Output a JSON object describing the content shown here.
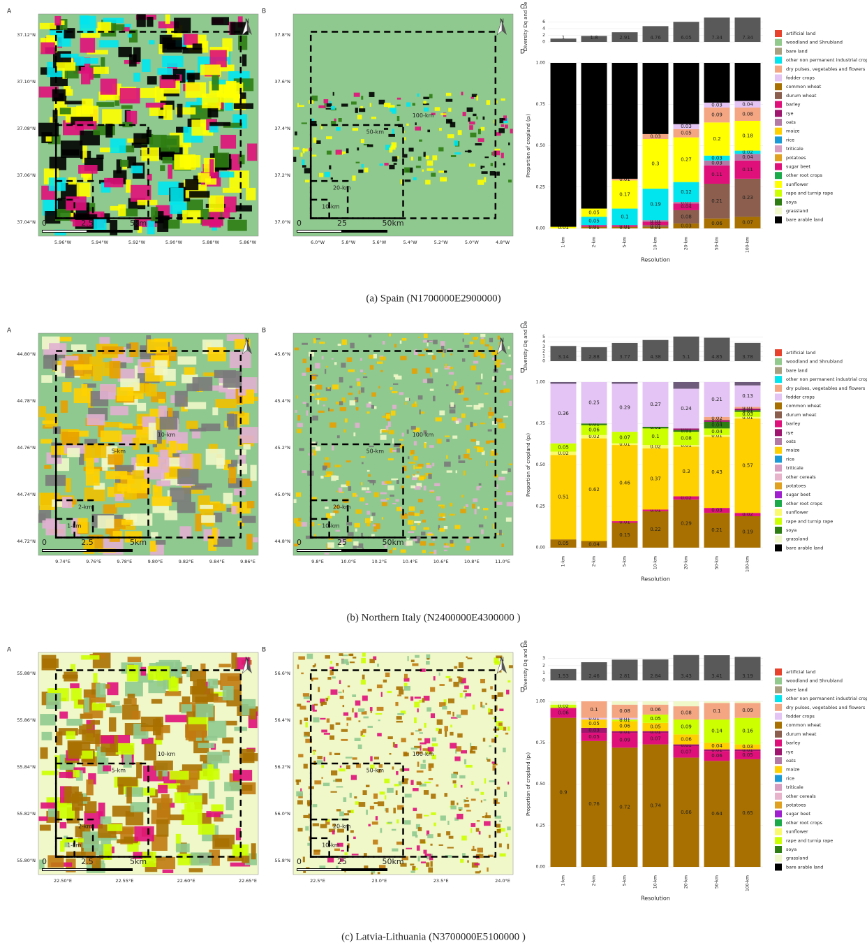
{
  "figures": [
    {
      "caption": "(a) Spain (N1700000E2900000)",
      "maps": [
        {
          "panel": "A",
          "yticks": [
            "37.12°N",
            "37.10°N",
            "37.08°N",
            "37.06°N",
            "37.04°N"
          ],
          "xticks": [
            "5.96°W",
            "5.94°W",
            "5.92°W",
            "5.90°W",
            "5.88°W",
            "5.86°W"
          ],
          "scale_labels": [
            "0",
            "2.5",
            "5km"
          ],
          "north": "N"
        },
        {
          "panel": "B",
          "yticks": [
            "37.8°N",
            "37.6°N",
            "37.4°N",
            "37.2°N",
            "37.0°N"
          ],
          "xticks": [
            "6.0°W",
            "5.8°W",
            "5.6°W",
            "5.4°W",
            "5.2°W",
            "5.0°W",
            "4.8°W"
          ],
          "box_labels": [
            "100-km",
            "50-km",
            "20-km",
            "10-km"
          ],
          "scale_labels": [
            "0",
            "25",
            "50km"
          ],
          "north": "N"
        }
      ],
      "legend": [
        {
          "name": "artificial land",
          "color": "#e8412c"
        },
        {
          "name": "woodland and Shrubland",
          "color": "#92c98c"
        },
        {
          "name": "bare land",
          "color": "#a89f80"
        },
        {
          "name": "other non permanent industrial crops",
          "color": "#00e5ee"
        },
        {
          "name": "dry pulses,  vegetables and flowers",
          "color": "#f4a582"
        },
        {
          "name": "fodder crops",
          "color": "#e4c4f4"
        },
        {
          "name": "common wheat",
          "color": "#a87000"
        },
        {
          "name": "durum wheat",
          "color": "#8b5e4e"
        },
        {
          "name": "barley",
          "color": "#e0107a"
        },
        {
          "name": "rye",
          "color": "#a0156e"
        },
        {
          "name": "oats",
          "color": "#b47aa6"
        },
        {
          "name": "maize",
          "color": "#ffd000"
        },
        {
          "name": "rice",
          "color": "#1a9ad6"
        },
        {
          "name": "triticale",
          "color": "#d89cc0"
        },
        {
          "name": "potatoes",
          "color": "#e0a020"
        },
        {
          "name": "sugar beet",
          "color": "#e0107a"
        },
        {
          "name": "other root crops",
          "color": "#1aaa4a"
        },
        {
          "name": "sunflower",
          "color": "#ffff00"
        },
        {
          "name": "rape and turnip rape",
          "color": "#ccff00"
        },
        {
          "name": "soya",
          "color": "#2e7d12"
        },
        {
          "name": "grassland",
          "color": "#f0f7c8"
        },
        {
          "name": "bare arable land",
          "color": "#000000"
        }
      ]
    },
    {
      "caption": "(b) Northern Italy (N2400000E4300000 )",
      "maps": [
        {
          "panel": "A",
          "yticks": [
            "44.80°N",
            "44.78°N",
            "44.76°N",
            "44.74°N",
            "44.72°N"
          ],
          "xticks": [
            "9.74°E",
            "9.76°E",
            "9.78°E",
            "9.80°E",
            "9.82°E",
            "9.84°E",
            "9.86°E"
          ],
          "box_labels": [
            "10-km",
            "5-km",
            "2-km",
            "1-km"
          ],
          "scale_labels": [
            "0",
            "2.5",
            "5km"
          ],
          "north": "N"
        },
        {
          "panel": "B",
          "yticks": [
            "45.6°N",
            "45.4°N",
            "45.2°N",
            "45.0°N",
            "44.8°N"
          ],
          "xticks": [
            "9.8°E",
            "10.0°E",
            "10.2°E",
            "10.4°E",
            "10.6°E",
            "10.8°E",
            "11.0°E"
          ],
          "box_labels": [
            "100-km",
            "50-km",
            "20-km",
            "10-km"
          ],
          "scale_labels": [
            "0",
            "25",
            "50km"
          ],
          "north": "N"
        }
      ],
      "legend": [
        {
          "name": "artificial land",
          "color": "#e8412c"
        },
        {
          "name": "woodland and Shrubland",
          "color": "#92c98c"
        },
        {
          "name": "bare land",
          "color": "#a89f80"
        },
        {
          "name": "other non permanent industrial crops",
          "color": "#00e5ee"
        },
        {
          "name": "dry pulses,  vegetables and flowers",
          "color": "#f4a582"
        },
        {
          "name": "fodder crops",
          "color": "#e4c4f4"
        },
        {
          "name": "common wheat",
          "color": "#a87000"
        },
        {
          "name": "durum wheat",
          "color": "#8b5e4e"
        },
        {
          "name": "barley",
          "color": "#e0107a"
        },
        {
          "name": "rye",
          "color": "#a0156e"
        },
        {
          "name": "oats",
          "color": "#b47aa6"
        },
        {
          "name": "maize",
          "color": "#ffd000"
        },
        {
          "name": "rice",
          "color": "#1a9ad6"
        },
        {
          "name": "triticale",
          "color": "#d89cc0"
        },
        {
          "name": "other cereals",
          "color": "#e8b4cc"
        },
        {
          "name": "potatoes",
          "color": "#e0a020"
        },
        {
          "name": "sugar beet",
          "color": "#a020d0"
        },
        {
          "name": "other root crops",
          "color": "#1aaa4a"
        },
        {
          "name": "sunflower",
          "color": "#fafa6e"
        },
        {
          "name": "rape and turnip rape",
          "color": "#ccff00"
        },
        {
          "name": "soya",
          "color": "#2e7d12"
        },
        {
          "name": "grassland",
          "color": "#f0f7c8"
        },
        {
          "name": "bare arable land",
          "color": "#000000"
        }
      ]
    },
    {
      "caption": "(c) Latvia-Lithuania (N3700000E5100000 )",
      "maps": [
        {
          "panel": "A",
          "yticks": [
            "55.88°N",
            "55.86°N",
            "55.84°N",
            "55.82°N",
            "55.80°N"
          ],
          "xticks": [
            "22.50°E",
            "22.55°E",
            "22.60°E",
            "22.65°E"
          ],
          "box_labels": [
            "10-km",
            "5-km",
            "2-km",
            "1-km"
          ],
          "scale_labels": [
            "0",
            "2.5",
            "5km"
          ],
          "north": "N"
        },
        {
          "panel": "B",
          "yticks": [
            "56.6°N",
            "56.4°N",
            "56.2°N",
            "56.0°N",
            "55.8°N"
          ],
          "xticks": [
            "22.5°E",
            "23.0°E",
            "23.5°E",
            "24.0°E"
          ],
          "box_labels": [
            "100-km",
            "50-km",
            "20-km",
            "10-km"
          ],
          "scale_labels": [
            "0",
            "25",
            "50km"
          ],
          "north": "N"
        }
      ],
      "legend": [
        {
          "name": "artificial land",
          "color": "#e8412c"
        },
        {
          "name": "woodland and Shrubland",
          "color": "#92c98c"
        },
        {
          "name": "bare land",
          "color": "#a89f80"
        },
        {
          "name": "other non permanent industrial crops",
          "color": "#00e5ee"
        },
        {
          "name": "dry pulses,  vegetables and flowers",
          "color": "#f4a582"
        },
        {
          "name": "fodder crops",
          "color": "#e4c4f4"
        },
        {
          "name": "common wheat",
          "color": "#a87000"
        },
        {
          "name": "durum wheat",
          "color": "#8b5e4e"
        },
        {
          "name": "barley",
          "color": "#e0107a"
        },
        {
          "name": "rye",
          "color": "#a0156e"
        },
        {
          "name": "oats",
          "color": "#b47aa6"
        },
        {
          "name": "maize",
          "color": "#ffd000"
        },
        {
          "name": "rice",
          "color": "#1a9ad6"
        },
        {
          "name": "triticale",
          "color": "#d89cc0"
        },
        {
          "name": "other cereals",
          "color": "#e8b4cc"
        },
        {
          "name": "potatoes",
          "color": "#e0a020"
        },
        {
          "name": "sugar beet",
          "color": "#a020d0"
        },
        {
          "name": "other root crops",
          "color": "#1aaa4a"
        },
        {
          "name": "sunflower",
          "color": "#fafa6e"
        },
        {
          "name": "rape and turnip rape",
          "color": "#ccff00"
        },
        {
          "name": "soya",
          "color": "#2e7d12"
        },
        {
          "name": "grassland",
          "color": "#f0f7c8"
        },
        {
          "name": "bare arable land",
          "color": "#000000"
        }
      ]
    }
  ],
  "chart_data": [
    {
      "type": "bar",
      "panel": "C",
      "ylabel": "Diversity Dq and De",
      "values": [
        1,
        1.8,
        2.91,
        4.76,
        6.05,
        7.34,
        7.34
      ],
      "color": "#595959",
      "ylim": [
        0,
        8
      ],
      "yticks": [
        0,
        2,
        4,
        6
      ]
    },
    {
      "type": "stacked_bar",
      "panel": "D",
      "ylabel": "Proportion of cropland (pᵢ)",
      "xlabel": "Resolution",
      "categories": [
        "1-km",
        "2-km",
        "5-km",
        "10-km",
        "20-km",
        "50-km",
        "100-km"
      ],
      "ylim": [
        0,
        1
      ],
      "yticks": [
        {
          "value": 0,
          "label": "0.00"
        },
        {
          "value": 0.25,
          "label": "0.25"
        },
        {
          "value": 0.5,
          "label": "0.50"
        },
        {
          "value": 0.75,
          "label": "0.75"
        },
        {
          "value": 1,
          "label": "1.00"
        }
      ],
      "series": [
        {
          "name": "common wheat",
          "color": "#a87000",
          "values": [
            0,
            0.01,
            0.01,
            0.01,
            0.03,
            0.06,
            0.07
          ]
        },
        {
          "name": "durum wheat",
          "color": "#8b5e4e",
          "values": [
            0,
            0,
            0,
            0.01,
            0.08,
            0.21,
            0.23
          ]
        },
        {
          "name": "barley",
          "color": "#e0107a",
          "values": [
            0,
            0.01,
            0.01,
            0.02,
            0.04,
            0.11,
            0.11
          ]
        },
        {
          "name": "oats",
          "color": "#b47aa6",
          "values": [
            0,
            0,
            0,
            0.01,
            0.01,
            0.03,
            0.04
          ]
        },
        {
          "name": "other non permanent industrial crops",
          "color": "#00e5ee",
          "values": [
            0,
            0.05,
            0.1,
            0.19,
            0.12,
            0.03,
            0.02
          ]
        },
        {
          "name": "sunflower",
          "color": "#ffff00",
          "values": [
            0.01,
            0.05,
            0.17,
            0.3,
            0.27,
            0.2,
            0.18
          ]
        },
        {
          "name": "dry pulses,  vegetables and flowers",
          "color": "#f4a582",
          "values": [
            0,
            0,
            0.01,
            0.03,
            0.05,
            0.09,
            0.08
          ]
        },
        {
          "name": "fodder crops",
          "color": "#e4c4f4",
          "values": [
            0,
            0,
            0,
            0,
            0.03,
            0.03,
            0.04
          ]
        },
        {
          "name": "bare arable land",
          "color": "#000000",
          "show_labels": false,
          "values": [
            0.99,
            0.88,
            0.7,
            0.43,
            0.37,
            0.24,
            0.23
          ]
        }
      ]
    },
    {
      "type": "bar",
      "panel": "C",
      "ylabel": "Diversity Dq and De",
      "values": [
        3.14,
        2.88,
        3.77,
        4.38,
        5.1,
        4.85,
        3.78
      ],
      "color": "#595959",
      "ylim": [
        0,
        5.5
      ],
      "yticks": [
        0,
        1,
        2,
        3,
        4,
        5
      ]
    },
    {
      "type": "stacked_bar",
      "panel": "D",
      "ylabel": "Proportion of cropland (pᵢ)",
      "xlabel": "Resolution",
      "categories": [
        "1-km",
        "2-km",
        "5-km",
        "10-km",
        "20-km",
        "50-km",
        "100-km"
      ],
      "ylim": [
        0,
        1
      ],
      "yticks": [
        {
          "value": 0,
          "label": "0.00"
        },
        {
          "value": 0.25,
          "label": "0.25"
        },
        {
          "value": 0.5,
          "label": "0.50"
        },
        {
          "value": 0.75,
          "label": "0.75"
        },
        {
          "value": 1,
          "label": "1.00"
        }
      ],
      "series": [
        {
          "name": "common wheat",
          "color": "#a87000",
          "values": [
            0.05,
            0.04,
            0.15,
            0.22,
            0.29,
            0.21,
            0.19
          ]
        },
        {
          "name": "barley",
          "color": "#e0107a",
          "values": [
            0,
            0,
            0.01,
            0.01,
            0.02,
            0.03,
            0.02
          ]
        },
        {
          "name": "maize",
          "color": "#ffd000",
          "values": [
            0.51,
            0.62,
            0.46,
            0.37,
            0.3,
            0.43,
            0.57
          ]
        },
        {
          "name": "sunflower",
          "color": "#fafa6e",
          "values": [
            0.02,
            0.02,
            0.01,
            0.02,
            0.01,
            0.01,
            0.01
          ]
        },
        {
          "name": "rape and turnip rape",
          "color": "#ccff00",
          "values": [
            0.05,
            0.06,
            0.07,
            0.1,
            0.08,
            0.04,
            0.03
          ]
        },
        {
          "name": "soya",
          "color": "#2e7d12",
          "values": [
            0,
            0.01,
            0,
            0.01,
            0.01,
            0.04,
            0.01
          ]
        },
        {
          "name": "rye",
          "color": "#a0156e",
          "values": [
            0,
            0,
            0,
            0,
            0.01,
            0.01,
            0.01
          ]
        },
        {
          "name": "dry pulses,  vegetables and flowers",
          "color": "#f4a582",
          "values": [
            0,
            0,
            0,
            0,
            0,
            0.02,
            0.01
          ]
        },
        {
          "name": "fodder crops",
          "color": "#e4c4f4",
          "values": [
            0.36,
            0.25,
            0.29,
            0.27,
            0.24,
            0.21,
            0.13
          ]
        },
        {
          "name": "grassland",
          "color": "#6e5a7a",
          "show_labels": false,
          "values": [
            0.01,
            0,
            0.01,
            0,
            0.04,
            0,
            0.02
          ]
        }
      ]
    },
    {
      "type": "bar",
      "panel": "C",
      "ylabel": "Diversity Dq and De",
      "values": [
        1.53,
        2.46,
        2.81,
        2.84,
        3.43,
        3.41,
        3.19
      ],
      "color": "#595959",
      "ylim": [
        0,
        3.6
      ],
      "yticks": [
        0,
        1,
        2,
        3
      ]
    },
    {
      "type": "stacked_bar",
      "panel": "D",
      "ylabel": "Proportion of cropland (pᵢ)",
      "xlabel": "Resolution",
      "categories": [
        "1-km",
        "2-km",
        "5-km",
        "10-km",
        "20-km",
        "50-km",
        "100-km"
      ],
      "ylim": [
        0,
        1
      ],
      "yticks": [
        {
          "value": 0,
          "label": "0.00"
        },
        {
          "value": 0.25,
          "label": "0.25"
        },
        {
          "value": 0.5,
          "label": "0.50"
        },
        {
          "value": 0.75,
          "label": "0.75"
        },
        {
          "value": 1,
          "label": "1.00"
        }
      ],
      "series": [
        {
          "name": "common wheat",
          "color": "#a87000",
          "values": [
            0.9,
            0.76,
            0.72,
            0.74,
            0.66,
            0.64,
            0.65
          ]
        },
        {
          "name": "barley",
          "color": "#e0107a",
          "values": [
            0.06,
            0.05,
            0.09,
            0.07,
            0.07,
            0.06,
            0.05
          ]
        },
        {
          "name": "rye",
          "color": "#a0156e",
          "values": [
            0,
            0.03,
            0.01,
            0.01,
            0.01,
            0.01,
            0.01
          ]
        },
        {
          "name": "maize",
          "color": "#ffd000",
          "values": [
            0,
            0.05,
            0.06,
            0.05,
            0.06,
            0.04,
            0.03
          ]
        },
        {
          "name": "rape and turnip rape",
          "color": "#ccff00",
          "values": [
            0.02,
            0,
            0.01,
            0.05,
            0.09,
            0.14,
            0.16
          ]
        },
        {
          "name": "fodder crops",
          "color": "#e4c4f4",
          "values": [
            0,
            0.01,
            0.01,
            0,
            0,
            0,
            0
          ]
        },
        {
          "name": "dry pulses,  vegetables and flowers",
          "color": "#f4a582",
          "values": [
            0,
            0.1,
            0.08,
            0.06,
            0.08,
            0.1,
            0.09
          ]
        },
        {
          "name": "grassland",
          "color": "#f0f7c8",
          "show_labels": false,
          "values": [
            0.02,
            0,
            0.02,
            0.02,
            0.03,
            0.01,
            0.01
          ]
        }
      ]
    }
  ]
}
